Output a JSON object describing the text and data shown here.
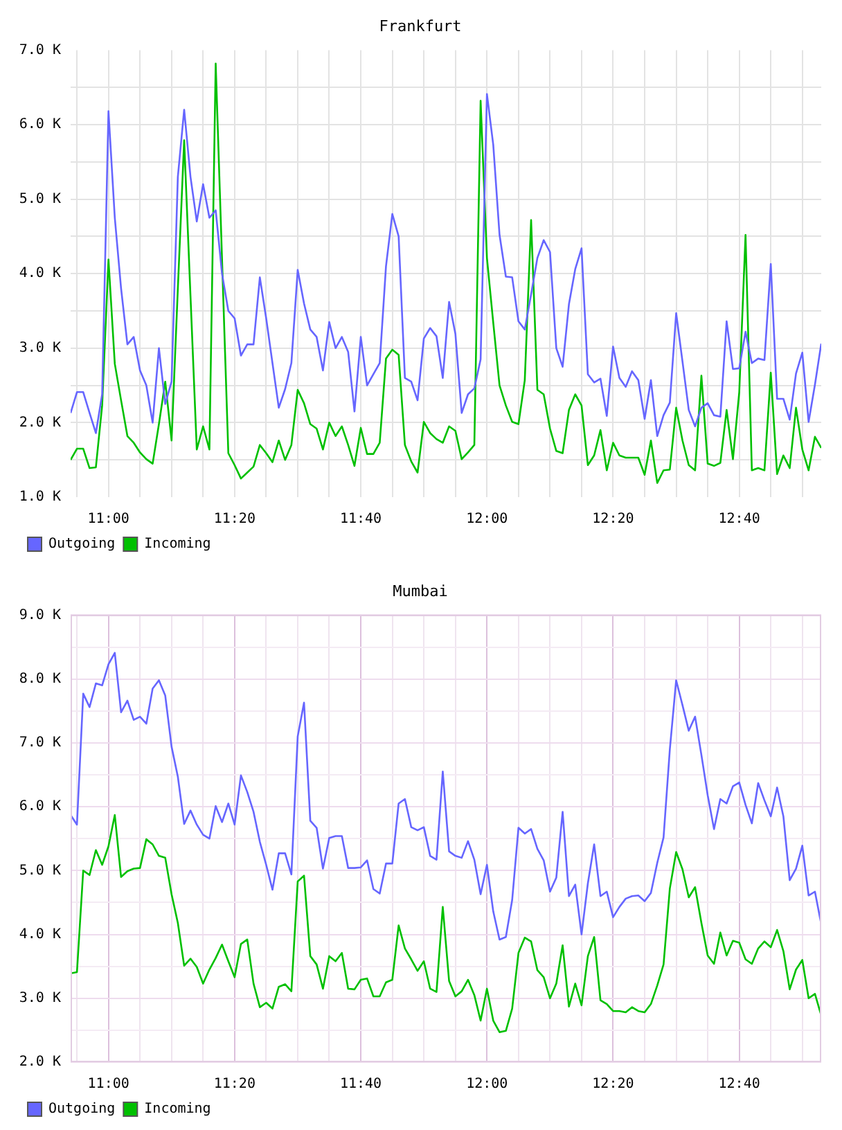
{
  "chart_data": [
    {
      "type": "line",
      "title": "Frankfurt",
      "legend": "bottom left",
      "grid": true,
      "x": [
        10.9,
        10.9167,
        10.9333,
        10.95,
        10.9667,
        10.9833,
        11,
        11.0167,
        11.0333,
        11.05,
        11.0667,
        11.0833,
        11.1,
        11.1167,
        11.1333,
        11.15,
        11.1667,
        11.1833,
        11.2,
        11.2167,
        11.2333,
        11.25,
        11.2667,
        11.2833,
        11.3,
        11.3167,
        11.3333,
        11.35,
        11.3667,
        11.3833,
        11.4,
        11.4167,
        11.4333,
        11.45,
        11.4667,
        11.4833,
        11.5,
        11.5167,
        11.5333,
        11.55,
        11.5667,
        11.5833,
        11.6,
        11.6167,
        11.6333,
        11.65,
        11.6667,
        11.6833,
        11.7,
        11.7167,
        11.7333,
        11.75,
        11.7667,
        11.7833,
        11.8,
        11.8167,
        11.8333,
        11.85,
        11.8667,
        11.8833,
        11.9,
        11.9167,
        11.9333,
        11.95,
        11.9667,
        11.9833,
        12,
        12.0167,
        12.0333,
        12.05,
        12.0667,
        12.0833,
        12.1,
        12.1167,
        12.1333,
        12.15,
        12.1667,
        12.1833,
        12.2,
        12.2167,
        12.2333,
        12.25,
        12.2667,
        12.2833,
        12.3,
        12.3167,
        12.3333,
        12.35,
        12.3667,
        12.3833,
        12.4,
        12.4167,
        12.4333,
        12.45,
        12.4667,
        12.4833,
        12.5,
        12.5167,
        12.5333,
        12.55,
        12.5667,
        12.5833,
        12.6,
        12.6167,
        12.6333,
        12.65,
        12.6667,
        12.6833,
        12.7,
        12.7167,
        12.7333,
        12.75,
        12.7667,
        12.7833,
        12.8,
        12.8167,
        12.8333,
        12.85,
        12.8667,
        12.8833
      ],
      "xlim": [
        10.9,
        12.8833
      ],
      "xticks": [
        {
          "value": 10.9167,
          "label": null
        },
        {
          "value": 11,
          "label": "11:00"
        },
        {
          "value": 11.0833,
          "label": null
        },
        {
          "value": 11.1667,
          "label": null
        },
        {
          "value": 11.25,
          "label": null
        },
        {
          "value": 11.3333,
          "label": "11:20"
        },
        {
          "value": 11.4167,
          "label": null
        },
        {
          "value": 11.5,
          "label": null
        },
        {
          "value": 11.5833,
          "label": null
        },
        {
          "value": 11.6667,
          "label": "11:40"
        },
        {
          "value": 11.75,
          "label": null
        },
        {
          "value": 11.8333,
          "label": null
        },
        {
          "value": 11.9167,
          "label": null
        },
        {
          "value": 12,
          "label": "12:00"
        },
        {
          "value": 12.0833,
          "label": null
        },
        {
          "value": 12.1667,
          "label": null
        },
        {
          "value": 12.25,
          "label": null
        },
        {
          "value": 12.3333,
          "label": "12:20"
        },
        {
          "value": 12.4167,
          "label": null
        },
        {
          "value": 12.5,
          "label": null
        },
        {
          "value": 12.5833,
          "label": null
        },
        {
          "value": 12.6667,
          "label": "12:40"
        },
        {
          "value": 12.75,
          "label": null
        },
        {
          "value": 12.8333,
          "label": null
        }
      ],
      "ylim": [
        1000,
        7000
      ],
      "yticks": [
        {
          "value": 1000,
          "label": "1.0 K"
        },
        {
          "value": 1500,
          "label": null
        },
        {
          "value": 2000,
          "label": "2.0 K"
        },
        {
          "value": 2500,
          "label": null
        },
        {
          "value": 3000,
          "label": "3.0 K"
        },
        {
          "value": 3500,
          "label": null
        },
        {
          "value": 4000,
          "label": "4.0 K"
        },
        {
          "value": 4500,
          "label": null
        },
        {
          "value": 5000,
          "label": "5.0 K"
        },
        {
          "value": 5500,
          "label": null
        },
        {
          "value": 6000,
          "label": "6.0 K"
        },
        {
          "value": 6500,
          "label": null
        },
        {
          "value": 7000,
          "label": "7.0 K"
        }
      ],
      "series": [
        {
          "name": "Outgoing",
          "color": "#6666ff",
          "values": [
            2130,
            2410,
            2410,
            2130,
            1860,
            2380,
            6180,
            4750,
            3800,
            3050,
            3150,
            2700,
            2500,
            2000,
            3000,
            2250,
            2550,
            5300,
            6200,
            5300,
            4700,
            5200,
            4750,
            4850,
            4000,
            3500,
            3400,
            2900,
            3050,
            3050,
            3950,
            3400,
            2800,
            2200,
            2450,
            2800,
            4050,
            3600,
            3250,
            3150,
            2700,
            3350,
            3000,
            3150,
            2950,
            2150,
            3150,
            2500,
            2650,
            2800,
            4100,
            4800,
            4500,
            2600,
            2550,
            2300,
            3130,
            3270,
            3160,
            2600,
            3620,
            3190,
            2130,
            2380,
            2460,
            2850,
            6410,
            5730,
            4520,
            3960,
            3950,
            3360,
            3250,
            3720,
            4210,
            4450,
            4290,
            3000,
            2750,
            3590,
            4060,
            4340,
            2650,
            2540,
            2590,
            2090,
            3020,
            2600,
            2480,
            2690,
            2570,
            2050,
            2570,
            1820,
            2100,
            2270,
            3470,
            2820,
            2170,
            1950,
            2200,
            2260,
            2100,
            2080,
            3360,
            2720,
            2730,
            3220,
            2800,
            2860,
            2840,
            4130,
            2320,
            2320,
            2040,
            2660,
            2940,
            2010,
            2510,
            3060
          ]
        },
        {
          "name": "Incoming",
          "color": "#00c000",
          "values": [
            1500,
            1650,
            1650,
            1390,
            1400,
            2230,
            4190,
            2790,
            2300,
            1820,
            1730,
            1600,
            1510,
            1450,
            1980,
            2550,
            1760,
            3800,
            5790,
            3700,
            1640,
            1950,
            1640,
            6820,
            4200,
            1590,
            1430,
            1250,
            1330,
            1410,
            1700,
            1590,
            1470,
            1760,
            1500,
            1700,
            2440,
            2260,
            1980,
            1920,
            1640,
            2000,
            1820,
            1950,
            1700,
            1420,
            1930,
            1580,
            1580,
            1730,
            2860,
            2980,
            2910,
            1700,
            1480,
            1330,
            2010,
            1860,
            1780,
            1730,
            1950,
            1890,
            1510,
            1600,
            1700,
            6320,
            4210,
            3340,
            2500,
            2230,
            2010,
            1980,
            2570,
            4720,
            2440,
            2380,
            1920,
            1620,
            1590,
            2170,
            2380,
            2230,
            1430,
            1560,
            1900,
            1360,
            1730,
            1560,
            1530,
            1530,
            1530,
            1300,
            1760,
            1190,
            1360,
            1370,
            2200,
            1760,
            1430,
            1360,
            2630,
            1450,
            1420,
            1460,
            2170,
            1510,
            2410,
            4520,
            1360,
            1390,
            1360,
            2670,
            1310,
            1560,
            1390,
            2200,
            1640,
            1360,
            1810,
            1660
          ]
        }
      ]
    },
    {
      "type": "line",
      "title": "Mumbai",
      "legend": "bottom left",
      "grid": true,
      "x": [
        10.9,
        10.9167,
        10.9333,
        10.95,
        10.9667,
        10.9833,
        11,
        11.0167,
        11.0333,
        11.05,
        11.0667,
        11.0833,
        11.1,
        11.1167,
        11.1333,
        11.15,
        11.1667,
        11.1833,
        11.2,
        11.2167,
        11.2333,
        11.25,
        11.2667,
        11.2833,
        11.3,
        11.3167,
        11.3333,
        11.35,
        11.3667,
        11.3833,
        11.4,
        11.4167,
        11.4333,
        11.45,
        11.4667,
        11.4833,
        11.5,
        11.5167,
        11.5333,
        11.55,
        11.5667,
        11.5833,
        11.6,
        11.6167,
        11.6333,
        11.65,
        11.6667,
        11.6833,
        11.7,
        11.7167,
        11.7333,
        11.75,
        11.7667,
        11.7833,
        11.8,
        11.8167,
        11.8333,
        11.85,
        11.8667,
        11.8833,
        11.9,
        11.9167,
        11.9333,
        11.95,
        11.9667,
        11.9833,
        12,
        12.0167,
        12.0333,
        12.05,
        12.0667,
        12.0833,
        12.1,
        12.1167,
        12.1333,
        12.15,
        12.1667,
        12.1833,
        12.2,
        12.2167,
        12.2333,
        12.25,
        12.2667,
        12.2833,
        12.3,
        12.3167,
        12.3333,
        12.35,
        12.3667,
        12.3833,
        12.4,
        12.4167,
        12.4333,
        12.45,
        12.4667,
        12.4833,
        12.5,
        12.5167,
        12.5333,
        12.55,
        12.5667,
        12.5833,
        12.6,
        12.6167,
        12.6333,
        12.65,
        12.6667,
        12.6833,
        12.7,
        12.7167,
        12.7333,
        12.75,
        12.7667,
        12.7833,
        12.8,
        12.8167,
        12.8333,
        12.85,
        12.8667,
        12.8833
      ],
      "xlim": [
        10.9,
        12.8833
      ],
      "xticks": [
        {
          "value": 10.9167,
          "label": null
        },
        {
          "value": 11,
          "label": "11:00"
        },
        {
          "value": 11.0833,
          "label": null
        },
        {
          "value": 11.1667,
          "label": null
        },
        {
          "value": 11.25,
          "label": null
        },
        {
          "value": 11.3333,
          "label": "11:20"
        },
        {
          "value": 11.4167,
          "label": null
        },
        {
          "value": 11.5,
          "label": null
        },
        {
          "value": 11.5833,
          "label": null
        },
        {
          "value": 11.6667,
          "label": "11:40"
        },
        {
          "value": 11.75,
          "label": null
        },
        {
          "value": 11.8333,
          "label": null
        },
        {
          "value": 11.9167,
          "label": null
        },
        {
          "value": 12,
          "label": "12:00"
        },
        {
          "value": 12.0833,
          "label": null
        },
        {
          "value": 12.1667,
          "label": null
        },
        {
          "value": 12.25,
          "label": null
        },
        {
          "value": 12.3333,
          "label": "12:20"
        },
        {
          "value": 12.4167,
          "label": null
        },
        {
          "value": 12.5,
          "label": null
        },
        {
          "value": 12.5833,
          "label": null
        },
        {
          "value": 12.6667,
          "label": "12:40"
        },
        {
          "value": 12.75,
          "label": null
        },
        {
          "value": 12.8333,
          "label": null
        }
      ],
      "ylim": [
        2000,
        9000
      ],
      "yticks": [
        {
          "value": 2000,
          "label": "2.0 K"
        },
        {
          "value": 2500,
          "label": null
        },
        {
          "value": 3000,
          "label": "3.0 K"
        },
        {
          "value": 3500,
          "label": null
        },
        {
          "value": 4000,
          "label": "4.0 K"
        },
        {
          "value": 4500,
          "label": null
        },
        {
          "value": 5000,
          "label": "5.0 K"
        },
        {
          "value": 5500,
          "label": null
        },
        {
          "value": 6000,
          "label": "6.0 K"
        },
        {
          "value": 6500,
          "label": null
        },
        {
          "value": 7000,
          "label": "7.0 K"
        },
        {
          "value": 7500,
          "label": null
        },
        {
          "value": 8000,
          "label": "8.0 K"
        },
        {
          "value": 8500,
          "label": null
        },
        {
          "value": 9000,
          "label": "9.0 K"
        }
      ],
      "series": [
        {
          "name": "Outgoing",
          "color": "#6666ff",
          "values": [
            5870,
            5720,
            7770,
            7560,
            7930,
            7900,
            8230,
            8410,
            7480,
            7660,
            7360,
            7410,
            7300,
            7850,
            7980,
            7740,
            6940,
            6470,
            5730,
            5940,
            5720,
            5560,
            5500,
            6010,
            5760,
            6050,
            5720,
            6490,
            6230,
            5920,
            5450,
            5090,
            4700,
            5270,
            5270,
            4940,
            7100,
            7630,
            5780,
            5670,
            5030,
            5510,
            5540,
            5540,
            5040,
            5040,
            5050,
            5160,
            4710,
            4640,
            5110,
            5110,
            6050,
            6120,
            5680,
            5630,
            5680,
            5230,
            5170,
            6550,
            5300,
            5230,
            5200,
            5460,
            5170,
            4630,
            5090,
            4360,
            3920,
            3960,
            4540,
            5670,
            5580,
            5650,
            5340,
            5160,
            4670,
            4890,
            5920,
            4600,
            4780,
            4000,
            4800,
            5410,
            4600,
            4670,
            4270,
            4430,
            4560,
            4600,
            4610,
            4520,
            4650,
            5120,
            5520,
            6900,
            7980,
            7590,
            7190,
            7410,
            6810,
            6180,
            5650,
            6120,
            6050,
            6320,
            6380,
            6030,
            5740,
            6370,
            6100,
            5850,
            6300,
            5850,
            4850,
            5030,
            5390,
            4610,
            4670,
            4160
          ]
        },
        {
          "name": "Incoming",
          "color": "#00c000",
          "values": [
            3390,
            3410,
            5000,
            4930,
            5320,
            5090,
            5380,
            5870,
            4900,
            4990,
            5030,
            5040,
            5490,
            5410,
            5230,
            5200,
            4630,
            4180,
            3510,
            3620,
            3490,
            3230,
            3450,
            3630,
            3840,
            3580,
            3330,
            3850,
            3920,
            3230,
            2860,
            2930,
            2840,
            3180,
            3220,
            3110,
            4830,
            4920,
            3660,
            3530,
            3150,
            3660,
            3580,
            3710,
            3150,
            3140,
            3290,
            3310,
            3030,
            3030,
            3250,
            3290,
            4140,
            3780,
            3610,
            3430,
            3580,
            3150,
            3100,
            4430,
            3270,
            3030,
            3110,
            3290,
            3050,
            2650,
            3150,
            2650,
            2470,
            2490,
            2840,
            3710,
            3950,
            3890,
            3440,
            3330,
            3000,
            3230,
            3830,
            2870,
            3230,
            2890,
            3660,
            3960,
            2970,
            2910,
            2800,
            2800,
            2780,
            2860,
            2800,
            2780,
            2910,
            3200,
            3530,
            4720,
            5290,
            5020,
            4580,
            4740,
            4180,
            3670,
            3540,
            4030,
            3670,
            3900,
            3870,
            3610,
            3540,
            3780,
            3890,
            3800,
            4070,
            3740,
            3140,
            3450,
            3600,
            3000,
            3070,
            2730
          ]
        }
      ]
    }
  ]
}
